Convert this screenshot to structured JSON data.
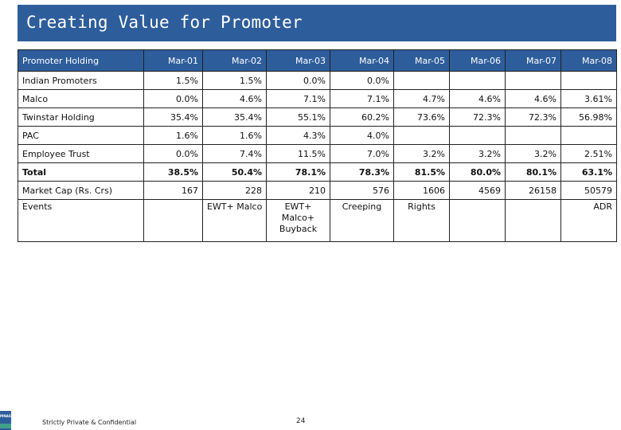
{
  "title": "Creating Value for Promoter",
  "table": {
    "headers": [
      "Promoter Holding",
      "Mar-01",
      "Mar-02",
      "Mar-03",
      "Mar-04",
      "Mar-05",
      "Mar-06",
      "Mar-07",
      "Mar-08"
    ],
    "rows": [
      {
        "label": "Indian Promoters",
        "values": [
          "1.5%",
          "1.5%",
          "0.0%",
          "0.0%",
          "",
          "",
          "",
          ""
        ]
      },
      {
        "label": "Malco",
        "values": [
          "0.0%",
          "4.6%",
          "7.1%",
          "7.1%",
          "4.7%",
          "4.6%",
          "4.6%",
          "3.61%"
        ]
      },
      {
        "label": "Twinstar Holding",
        "values": [
          "35.4%",
          "35.4%",
          "55.1%",
          "60.2%",
          "73.6%",
          "72.3%",
          "72.3%",
          "56.98%"
        ]
      },
      {
        "label": "PAC",
        "values": [
          "1.6%",
          "1.6%",
          "4.3%",
          "4.0%",
          "",
          "",
          "",
          ""
        ]
      },
      {
        "label": "Employee Trust",
        "values": [
          "0.0%",
          "7.4%",
          "11.5%",
          "7.0%",
          "3.2%",
          "3.2%",
          "3.2%",
          "2.51%"
        ]
      },
      {
        "label": "Total",
        "values": [
          "38.5%",
          "50.4%",
          "78.1%",
          "78.3%",
          "81.5%",
          "80.0%",
          "80.1%",
          "63.1%"
        ]
      },
      {
        "label": "Market Cap (Rs. Crs)",
        "values": [
          "167",
          "228",
          "210",
          "576",
          "1606",
          "4569",
          "26158",
          "50579"
        ]
      },
      {
        "label": "Events",
        "values": [
          "",
          "EWT+ Malco",
          "EWT+ Malco+ Buyback",
          "Creeping",
          "Rights",
          "",
          "",
          "ADR"
        ]
      }
    ]
  },
  "footer": {
    "note": "Strictly Private & Confidential",
    "page_number": "24",
    "logo_text": "PINAST"
  },
  "colors": {
    "header_bg": "#2e5d9b",
    "logo_accent": "#3fa08a"
  }
}
